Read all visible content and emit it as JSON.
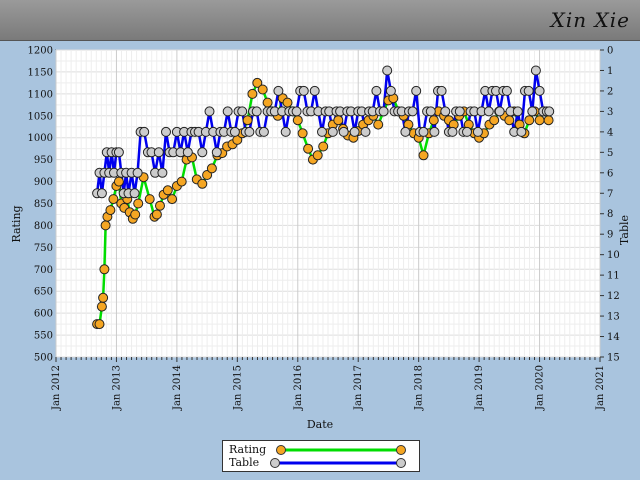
{
  "header": {
    "title": "Xin  Xie"
  },
  "chart_data": {
    "type": "line",
    "xlabel": "Date",
    "ylabel": "Rating",
    "y2label": "Table",
    "x_ticks": [
      "Jan 2012",
      "Jan 2013",
      "Jan 2014",
      "Jan 2015",
      "Jan 2016",
      "Jan 2017",
      "Jan 2018",
      "Jan 2019",
      "Jan 2020",
      "Jan 2021"
    ],
    "xlim": [
      2012.0,
      2021.0
    ],
    "ylim": [
      500,
      1200
    ],
    "y_ticks": [
      500,
      550,
      600,
      650,
      700,
      750,
      800,
      850,
      900,
      950,
      1000,
      1050,
      1100,
      1150,
      1200
    ],
    "y2lim": [
      15,
      0
    ],
    "y2_ticks": [
      0,
      1,
      2,
      3,
      4,
      5,
      6,
      7,
      8,
      9,
      10,
      11,
      12,
      13,
      14,
      15
    ],
    "grid": true,
    "legend_position": "bottom-center",
    "series": [
      {
        "name": "Rating",
        "axis": "left",
        "color": "#00dd00",
        "marker_color": "#f5a623",
        "x": [
          2012.68,
          2012.72,
          2012.76,
          2012.78,
          2012.8,
          2012.82,
          2012.85,
          2012.9,
          2012.95,
          2013.0,
          2013.04,
          2013.08,
          2013.13,
          2013.18,
          2013.22,
          2013.27,
          2013.31,
          2013.36,
          2013.45,
          2013.55,
          2013.63,
          2013.67,
          2013.72,
          2013.78,
          2013.85,
          2013.92,
          2014.0,
          2014.08,
          2014.16,
          2014.25,
          2014.33,
          2014.42,
          2014.5,
          2014.58,
          2014.67,
          2014.75,
          2014.83,
          2014.92,
          2015.0,
          2015.08,
          2015.17,
          2015.25,
          2015.33,
          2015.42,
          2015.5,
          2015.58,
          2015.67,
          2015.75,
          2015.83,
          2015.92,
          2016.0,
          2016.08,
          2016.17,
          2016.25,
          2016.33,
          2016.42,
          2016.5,
          2016.58,
          2016.67,
          2016.75,
          2016.83,
          2016.92,
          2017.0,
          2017.08,
          2017.17,
          2017.25,
          2017.33,
          2017.42,
          2017.5,
          2017.58,
          2017.67,
          2017.75,
          2017.83,
          2017.92,
          2018.0,
          2018.08,
          2018.17,
          2018.25,
          2018.33,
          2018.42,
          2018.5,
          2018.58,
          2018.67,
          2018.75,
          2018.83,
          2018.92,
          2019.0,
          2019.08,
          2019.17,
          2019.25,
          2019.33,
          2019.42,
          2019.5,
          2019.58,
          2019.67,
          2019.75,
          2019.83,
          2019.92,
          2020.0,
          2020.08,
          2020.15
        ],
        "values": [
          575,
          575,
          615,
          635,
          700,
          800,
          820,
          835,
          860,
          890,
          900,
          850,
          840,
          860,
          830,
          815,
          825,
          850,
          910,
          860,
          820,
          825,
          845,
          870,
          880,
          860,
          890,
          900,
          950,
          955,
          905,
          895,
          915,
          930,
          960,
          965,
          980,
          985,
          995,
          1010,
          1040,
          1100,
          1125,
          1110,
          1080,
          1060,
          1050,
          1090,
          1080,
          1060,
          1040,
          1010,
          975,
          950,
          960,
          980,
          1010,
          1030,
          1040,
          1020,
          1005,
          1000,
          1015,
          1030,
          1040,
          1050,
          1030,
          1060,
          1085,
          1090,
          1060,
          1050,
          1030,
          1010,
          1000,
          960,
          1010,
          1040,
          1060,
          1050,
          1040,
          1030,
          1050,
          1060,
          1030,
          1010,
          1000,
          1010,
          1030,
          1040,
          1060,
          1050,
          1040,
          1060,
          1030,
          1010,
          1040,
          1060,
          1040,
          1060,
          1040
        ]
      },
      {
        "name": "Table",
        "axis": "right",
        "color": "#0000ee",
        "marker_color": "#cccccc",
        "x": [
          2012.68,
          2012.72,
          2012.76,
          2012.8,
          2012.84,
          2012.88,
          2012.92,
          2012.96,
          2013.0,
          2013.04,
          2013.08,
          2013.12,
          2013.16,
          2013.2,
          2013.25,
          2013.3,
          2013.35,
          2013.4,
          2013.46,
          2013.52,
          2013.58,
          2013.64,
          2013.7,
          2013.76,
          2013.82,
          2013.88,
          2013.94,
          2014.0,
          2014.06,
          2014.12,
          2014.18,
          2014.24,
          2014.3,
          2014.36,
          2014.42,
          2014.48,
          2014.54,
          2014.6,
          2014.66,
          2014.72,
          2014.78,
          2014.84,
          2014.9,
          2014.96,
          2015.02,
          2015.08,
          2015.14,
          2015.2,
          2015.26,
          2015.32,
          2015.38,
          2015.44,
          2015.5,
          2015.56,
          2015.62,
          2015.68,
          2015.74,
          2015.8,
          2015.86,
          2015.92,
          2015.98,
          2016.04,
          2016.1,
          2016.16,
          2016.22,
          2016.28,
          2016.34,
          2016.4,
          2016.46,
          2016.52,
          2016.58,
          2016.64,
          2016.7,
          2016.76,
          2016.82,
          2016.88,
          2016.94,
          2017.0,
          2017.06,
          2017.12,
          2017.18,
          2017.24,
          2017.3,
          2017.36,
          2017.42,
          2017.48,
          2017.54,
          2017.6,
          2017.66,
          2017.72,
          2017.78,
          2017.84,
          2017.9,
          2017.96,
          2018.02,
          2018.08,
          2018.14,
          2018.2,
          2018.26,
          2018.32,
          2018.38,
          2018.44,
          2018.5,
          2018.56,
          2018.62,
          2018.68,
          2018.74,
          2018.8,
          2018.86,
          2018.92,
          2018.98,
          2019.04,
          2019.1,
          2019.16,
          2019.22,
          2019.28,
          2019.34,
          2019.4,
          2019.46,
          2019.52,
          2019.58,
          2019.64,
          2019.7,
          2019.76,
          2019.82,
          2019.88,
          2019.94,
          2020.0,
          2020.06,
          2020.12,
          2020.16
        ],
        "values": [
          7,
          6,
          7,
          6,
          5,
          6,
          5,
          6,
          5,
          5,
          6,
          7,
          6,
          7,
          6,
          7,
          6,
          4,
          4,
          5,
          5,
          6,
          5,
          6,
          4,
          5,
          5,
          4,
          5,
          4,
          5,
          4,
          4,
          4,
          5,
          4,
          3,
          4,
          5,
          4,
          4,
          3,
          4,
          4,
          3,
          3,
          4,
          4,
          3,
          3,
          4,
          4,
          3,
          3,
          3,
          2,
          3,
          4,
          3,
          3,
          3,
          2,
          2,
          3,
          3,
          2,
          3,
          4,
          3,
          3,
          4,
          3,
          3,
          4,
          3,
          3,
          4,
          3,
          3,
          4,
          3,
          3,
          2,
          3,
          3,
          1,
          2,
          3,
          3,
          3,
          4,
          3,
          3,
          2,
          4,
          4,
          3,
          3,
          4,
          2,
          2,
          3,
          4,
          4,
          3,
          3,
          4,
          4,
          3,
          3,
          4,
          3,
          2,
          3,
          2,
          2,
          3,
          2,
          2,
          3,
          4,
          3,
          4,
          2,
          2,
          3,
          1,
          2,
          3,
          3,
          3
        ]
      }
    ]
  }
}
